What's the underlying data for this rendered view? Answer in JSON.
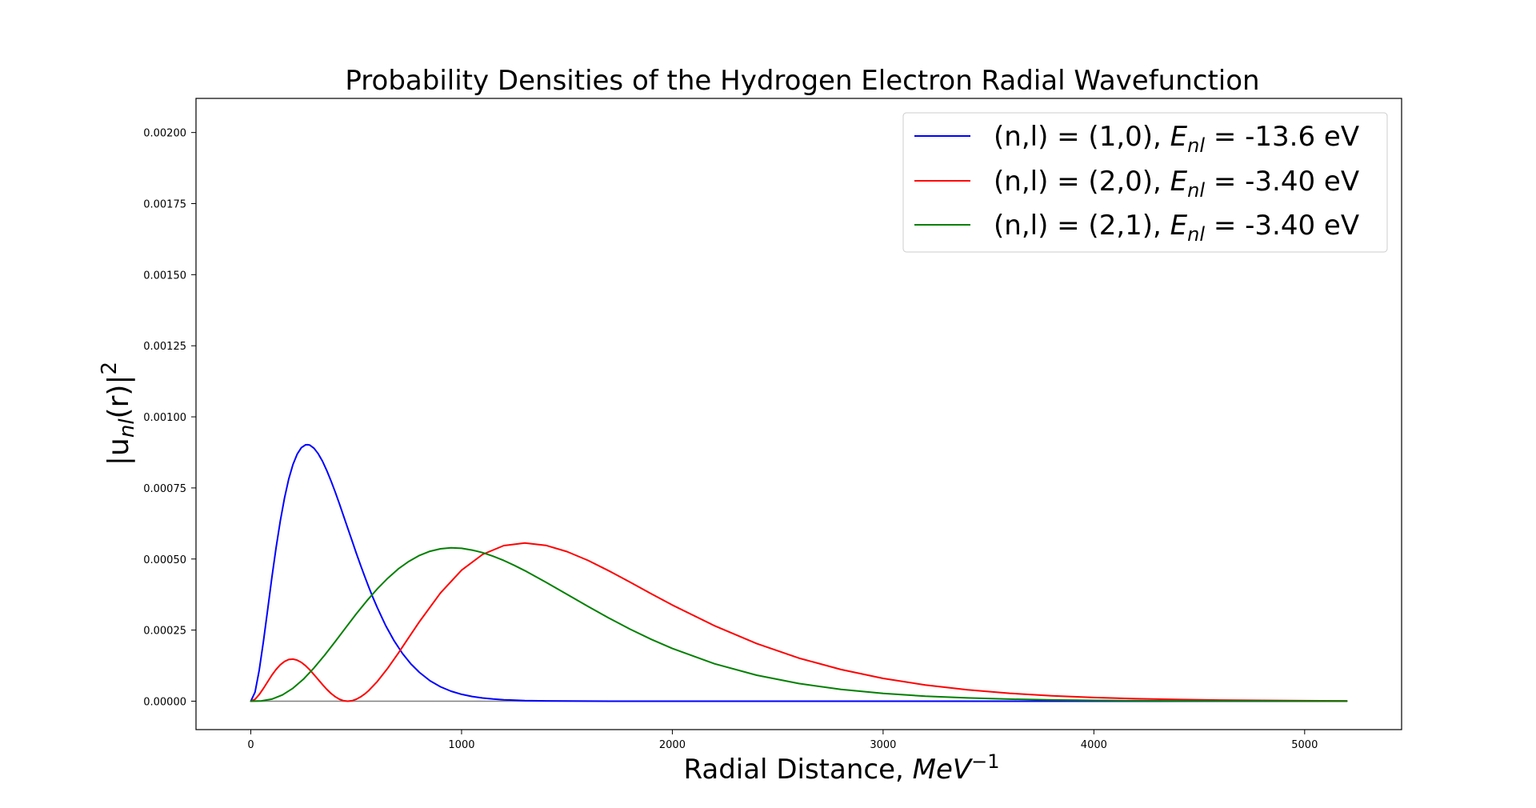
{
  "chart_data": {
    "type": "line",
    "title": "Probability Densities of the Hydrogen Electron Radial Wavefunction",
    "xlabel": {
      "main": "Radial Distance, ",
      "unit": "MeV",
      "exp": "−1"
    },
    "ylabel": {
      "open": "|u",
      "sub": "nl",
      "mid": "(r)|",
      "sup": "2"
    },
    "xlim": [
      -260,
      5460
    ],
    "ylim": [
      -0.0001,
      0.00212
    ],
    "xticks": [
      0,
      1000,
      2000,
      3000,
      4000,
      5000
    ],
    "xtick_labels": [
      "0",
      "1000",
      "2000",
      "3000",
      "4000",
      "5000"
    ],
    "yticks": [
      0,
      0.00025,
      0.0005,
      0.00075,
      0.001,
      0.00125,
      0.0015,
      0.00175,
      0.002
    ],
    "ytick_labels": [
      "0.00000",
      "0.00025",
      "0.00050",
      "0.00075",
      "0.00100",
      "0.00125",
      "0.00150",
      "0.00175",
      "0.00200"
    ],
    "grid": false,
    "legend_position": "top-right",
    "zero_line": {
      "x": [
        0,
        5200
      ],
      "y": 0,
      "color": "#808080"
    },
    "series": [
      {
        "name": "(n,l) = (1,0), E_nl = -13.6 eV",
        "legend": {
          "open": "(n,l) = (1,0), ",
          "e": "E",
          "sub": "nl",
          "close": " =  -13.6 eV"
        },
        "color": "#0000ff",
        "x": [
          0,
          20,
          40,
          60,
          80,
          100,
          120,
          140,
          160,
          180,
          200,
          220,
          240,
          260,
          270,
          280,
          300,
          320,
          340,
          360,
          380,
          400,
          420,
          440,
          460,
          480,
          500,
          520,
          540,
          560,
          580,
          600,
          640,
          680,
          720,
          760,
          800,
          850,
          900,
          950,
          1000,
          1050,
          1100,
          1150,
          1200,
          1300,
          1400,
          1500,
          1600,
          1800,
          2000,
          2200,
          2400,
          2600,
          3000,
          3500,
          4000,
          4500,
          5200
        ],
        "y": [
          0,
          3.16e-05,
          0.0001085,
          0.0002103,
          0.0003222,
          0.0004344,
          0.0005399,
          0.0006344,
          0.0007153,
          0.0007813,
          0.0008324,
          0.0008689,
          0.0008916,
          0.0009017,
          0.000902,
          0.0009006,
          0.0008896,
          0.0008703,
          0.000844,
          0.0008121,
          0.0007758,
          0.0007364,
          0.0006947,
          0.0006518,
          0.0006082,
          0.0005648,
          0.0005219,
          0.00048,
          0.0004395,
          0.0004007,
          0.0003638,
          0.000329,
          0.0002659,
          0.000212,
          0.0001673,
          0.0001306,
          0.0001013,
          7.19e-05,
          5.05e-05,
          3.51e-05,
          2.41e-05,
          1.65e-05,
          1.12e-05,
          7.5e-06,
          5e-06,
          2.2e-06,
          1e-06,
          4e-07,
          2e-07,
          0,
          0,
          0,
          0,
          0,
          0,
          0,
          0,
          0,
          0
        ]
      },
      {
        "name": "(n,l) = (2,0), E_nl = -3.40 eV",
        "legend": {
          "open": "(n,l) = (2,0), ",
          "e": "E",
          "sub": "nl",
          "close": " =  -3.40 eV"
        },
        "color": "#ff0000",
        "x": [
          0,
          20,
          40,
          60,
          80,
          100,
          120,
          140,
          160,
          180,
          200,
          220,
          240,
          260,
          280,
          300,
          320,
          340,
          360,
          380,
          400,
          420,
          440,
          460,
          480,
          500,
          520,
          540,
          560,
          600,
          650,
          700,
          750,
          800,
          900,
          1000,
          1100,
          1200,
          1300,
          1400,
          1500,
          1600,
          1700,
          1800,
          1900,
          2000,
          2200,
          2400,
          2600,
          2800,
          3000,
          3200,
          3400,
          3600,
          3800,
          4000,
          4200,
          4400,
          4600,
          4800,
          5000,
          5200
        ],
        "y": [
          0,
          6.7e-06,
          2.32e-05,
          4.49e-05,
          6.85e-05,
          9.14e-05,
          0.0001117,
          0.0001281,
          0.0001398,
          0.0001464,
          0.0001478,
          0.0001443,
          0.0001363,
          0.0001245,
          0.0001098,
          9.32e-05,
          7.58e-05,
          5.84e-05,
          4.21e-05,
          2.77e-05,
          1.58e-05,
          7e-06,
          1.7e-06,
          0,
          1.7e-06,
          6.6e-06,
          1.44e-05,
          2.48e-05,
          3.76e-05,
          6.91e-05,
          0.0001163,
          0.0001691,
          0.0002245,
          0.0002797,
          0.0003805,
          0.0004607,
          0.0005162,
          0.0005472,
          0.0005565,
          0.000548,
          0.0005261,
          0.000495,
          0.000458,
          0.0004182,
          0.0003778,
          0.0003382,
          0.0002653,
          0.0002027,
          0.0001516,
          0.0001112,
          8.02e-05,
          5.7e-05,
          3.99e-05,
          2.77e-05,
          1.9e-05,
          1.29e-05,
          8.7e-06,
          5.8e-06,
          3.9e-06,
          2.6e-06,
          1.7e-06,
          1.1e-06
        ]
      },
      {
        "name": "(n,l) = (2,1), E_nl = -3.40 eV",
        "legend": {
          "open": "(n,l) = (2,1), ",
          "e": "E",
          "sub": "nl",
          "close": " =  -3.40 eV"
        },
        "color": "#008000",
        "x": [
          0,
          50,
          100,
          150,
          200,
          250,
          300,
          350,
          400,
          450,
          500,
          550,
          600,
          650,
          700,
          750,
          800,
          850,
          900,
          950,
          1000,
          1050,
          1070,
          1100,
          1150,
          1200,
          1250,
          1300,
          1400,
          1500,
          1600,
          1700,
          1800,
          1900,
          2000,
          2200,
          2400,
          2600,
          2800,
          3000,
          3200,
          3400,
          3600,
          3800,
          4000,
          4200,
          4400,
          4600,
          4800,
          5000,
          5200
        ],
        "y": [
          0,
          1e-06,
          7.2e-06,
          2.18e-05,
          4.54e-05,
          7.75e-05,
          0.0001168,
          0.0001614,
          0.0002092,
          0.0002582,
          0.0003065,
          0.0003525,
          0.0003949,
          0.0004327,
          0.0004652,
          0.0004918,
          0.0005125,
          0.0005271,
          0.0005359,
          0.0005393,
          0.0005376,
          0.0005313,
          0.000528,
          0.0005223,
          0.0005098,
          0.0004948,
          0.0004777,
          0.000459,
          0.0004184,
          0.0003758,
          0.0003332,
          0.000292,
          0.0002532,
          0.0002175,
          0.0001853,
          0.0001316,
          9.14e-05,
          6.22e-05,
          4.15e-05,
          2.73e-05,
          1.77e-05,
          1.13e-05,
          7.2e-06,
          4.5e-06,
          2.8e-06,
          1.7e-06,
          1.1e-06,
          6e-07,
          4e-07,
          2e-07,
          1e-07
        ]
      }
    ]
  }
}
